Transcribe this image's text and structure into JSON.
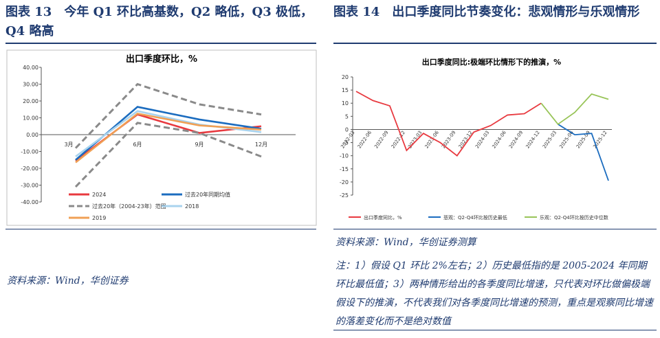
{
  "left": {
    "panel_title": "图表 13　今年 Q1 环比高基数，Q2 略低，Q3 极低，Q4 略高",
    "source": "资料来源：Wind，华创证券",
    "chart_data": {
      "type": "line",
      "title": "出口季度环比，%",
      "categories": [
        "3月",
        "6月",
        "9月",
        "12月"
      ],
      "ylim": [
        -40,
        40
      ],
      "yticks": [
        "40.00",
        "30.00",
        "20.00",
        "10.00",
        "0.00",
        "-10.00",
        "-20.00",
        "-30.00",
        "-40.00"
      ],
      "series": [
        {
          "name": "2024",
          "color": "#e8393f",
          "dash": false,
          "values": [
            -15.5,
            12,
            1,
            5
          ]
        },
        {
          "name": "过去20年同期均值",
          "color": "#1b6cbf",
          "dash": false,
          "values": [
            -15,
            16.5,
            9,
            3.5
          ]
        },
        {
          "name": "过去20年（2004-23年）范围",
          "color": "#8a8a8a",
          "dash": true,
          "values": [
            -8,
            30,
            18,
            12
          ]
        },
        {
          "name": "",
          "color": "#8a8a8a",
          "dash": true,
          "legend": false,
          "values": [
            -31,
            7,
            1,
            -13
          ]
        },
        {
          "name": "2018",
          "color": "#a9d3ee",
          "dash": false,
          "values": [
            -13,
            14,
            6,
            1.5
          ]
        },
        {
          "name": "2019",
          "color": "#f0a055",
          "dash": false,
          "values": [
            -16.5,
            12.5,
            5.5,
            3
          ]
        }
      ]
    }
  },
  "right": {
    "panel_title": "图表 14　出口季度同比节奏变化：悲观情形与乐观情形",
    "source": "资料来源：Wind，华创证券测算",
    "note": "注：1）假设 Q1 环比 2%左右；2）历史最低指的是 2005-2024 年同期环比最低值；3）两种情形给出的各季度同比增速，只代表对环比做偏极端假设下的推演，不代表我们对各季度同比增速的预测，重点是观察同比增速的落差变化而不是绝对数值",
    "chart_data": {
      "type": "line",
      "title": "出口季度同比:极端环比情形下的推演，%",
      "categories": [
        "2022-03",
        "2022-06",
        "2022-09",
        "2022-12",
        "2023-03",
        "2023-06",
        "2023-09",
        "2023-12",
        "2024-03",
        "2024-06",
        "2024-09",
        "2024-12",
        "2025-03",
        "2025-06",
        "2025-09",
        "2025-12"
      ],
      "ylim": [
        -25,
        20
      ],
      "yticks": [
        "20",
        "15",
        "10",
        "5",
        "0",
        "-5",
        "-10",
        "-15",
        "-20",
        "-25"
      ],
      "series": [
        {
          "name": "出口季度同比，%",
          "color": "#e8393f",
          "values": [
            14.5,
            11,
            9,
            -8,
            -1.5,
            -5,
            -10,
            -1,
            1.5,
            5.5,
            6,
            10,
            null,
            null,
            null,
            null
          ]
        },
        {
          "name": "悲观：Q2-Q4环比按历史最低",
          "color": "#1b6cbf",
          "values": [
            null,
            null,
            null,
            null,
            null,
            null,
            null,
            null,
            null,
            null,
            null,
            null,
            2,
            -2,
            -1.5,
            -19.5
          ]
        },
        {
          "name": "乐观：Q2-Q4环比按历史中位数",
          "color": "#98c458",
          "values": [
            null,
            null,
            null,
            null,
            null,
            null,
            null,
            null,
            null,
            null,
            null,
            10,
            2,
            6.5,
            13.5,
            11.5
          ]
        }
      ]
    }
  }
}
